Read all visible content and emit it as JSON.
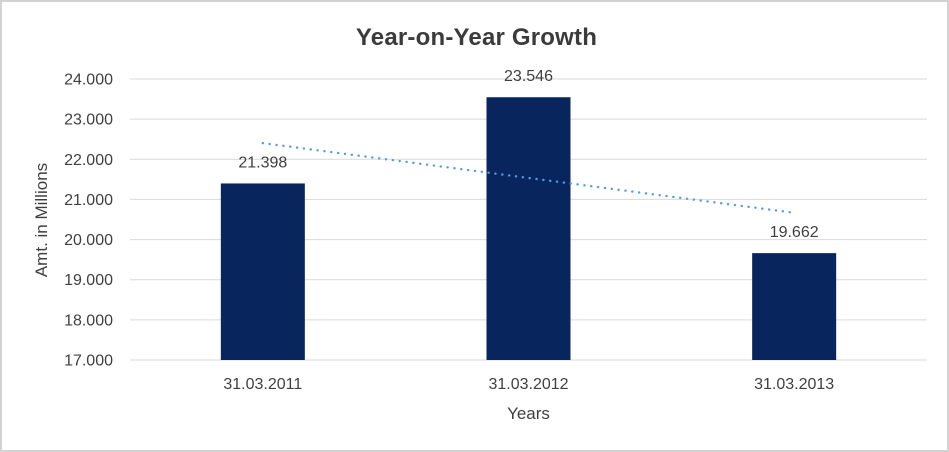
{
  "chart_data": {
    "type": "bar",
    "title": "Year-on-Year Growth",
    "xlabel": "Years",
    "ylabel": "Amt. in Millions",
    "categories": [
      "31.03.2011",
      "31.03.2012",
      "31.03.2013"
    ],
    "values": [
      21398,
      23546,
      19662
    ],
    "value_labels": [
      "21.398",
      "23.546",
      "19.662"
    ],
    "ylim": [
      17000,
      24000
    ],
    "ytick_step": 1000,
    "ytick_labels": [
      "17.000",
      "18.000",
      "19.000",
      "20.000",
      "21.000",
      "22.000",
      "23.000",
      "24.000"
    ],
    "grid": true,
    "legend_position": "none",
    "bar_color": "#08255d",
    "gridline_color": "#d9d9d9",
    "text_color": "#404040",
    "title_color": "#3b3b3b",
    "border_color": "#d2d2d2",
    "trendline": {
      "type": "linear",
      "style": "dotted",
      "color": "#5b9bd5",
      "start_value": 22403,
      "end_value": 20667
    }
  }
}
